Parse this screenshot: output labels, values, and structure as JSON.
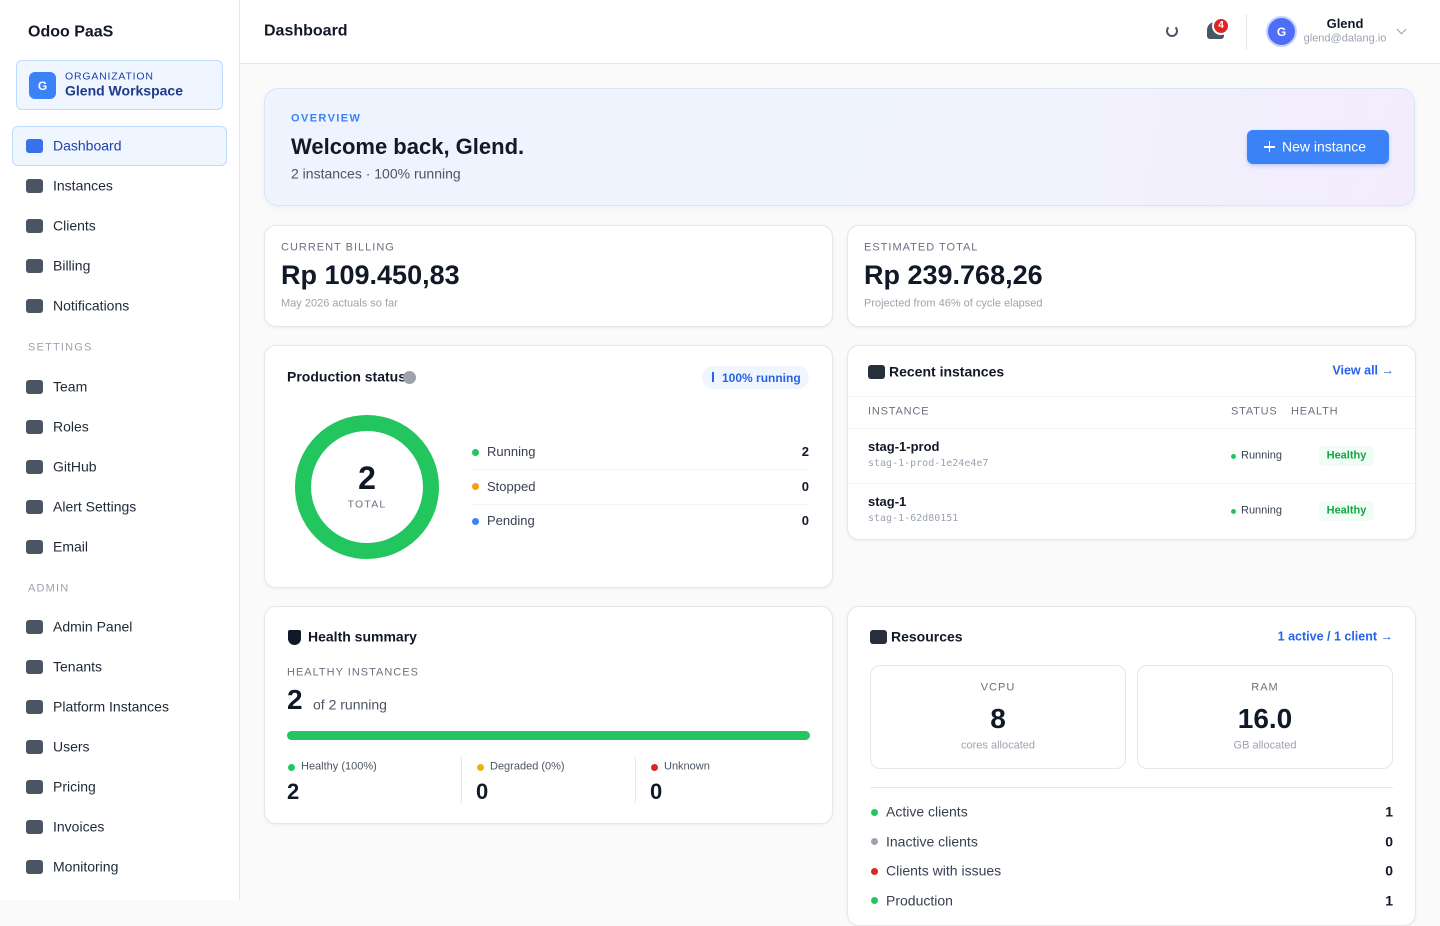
{
  "sidebar": {
    "brand": "Odoo PaaS",
    "organization": {
      "avatar": "G",
      "label": "ORGANIZATION",
      "name": "Glend Workspace"
    },
    "nav": [
      "Dashboard",
      "Instances",
      "Clients",
      "Billing",
      "Notifications"
    ],
    "settings": {
      "label": "SETTINGS",
      "items": [
        "Team",
        "Roles",
        "GitHub",
        "Alert Settings",
        "Email"
      ]
    },
    "admin": {
      "label": "ADMIN",
      "items": [
        "Admin Panel",
        "Tenants",
        "Platform Instances",
        "Users",
        "Pricing",
        "Invoices",
        "Monitoring"
      ]
    }
  },
  "header": {
    "title": "Dashboard",
    "notification_count": 4,
    "user": {
      "avatar": "G",
      "name": "Glend",
      "email": "glend@dalang.io"
    }
  },
  "overview": {
    "eyebrow": "OVERVIEW",
    "title": "Welcome back, Glend.",
    "subtitle": "2 instances · 100% running",
    "button": "New instance"
  },
  "billing": [
    {
      "label": "CURRENT BILLING",
      "value": "Rp 109.450,83",
      "note": "May 2026 actuals so far"
    },
    {
      "label": "ESTIMATED TOTAL",
      "value": "Rp 239.768,26",
      "note": "Projected from 46% of cycle elapsed"
    }
  ],
  "production_status": {
    "title": "Production status",
    "badge": "100% running",
    "total": 2,
    "total_label": "TOTAL",
    "rows": [
      {
        "label": "Running",
        "value": 2,
        "color": "#22c55e"
      },
      {
        "label": "Stopped",
        "value": 0,
        "color": "#f59e0b"
      },
      {
        "label": "Pending",
        "value": 0,
        "color": "#3b82f6"
      }
    ]
  },
  "recent_instances": {
    "title": "Recent instances",
    "link": "View all →",
    "columns": [
      "INSTANCE",
      "STATUS",
      "HEALTH"
    ],
    "rows": [
      {
        "name": "stag-1-prod",
        "id": "stag-1-prod-1e24e4e7",
        "status": "Running",
        "health": "Healthy"
      },
      {
        "name": "stag-1",
        "id": "stag-1-62d80151",
        "status": "Running",
        "health": "Healthy"
      }
    ]
  },
  "health_summary": {
    "title": "Health summary",
    "label": "HEALTHY INSTANCES",
    "value": 2,
    "detail": "of 2 running",
    "stats": [
      {
        "label": "Healthy (100%)",
        "value": 2,
        "color": "#22c55e"
      },
      {
        "label": "Degraded (0%)",
        "value": 0,
        "color": "#eab308"
      },
      {
        "label": "Unknown",
        "value": 0,
        "color": "#dc2626"
      }
    ]
  },
  "resources": {
    "title": "Resources",
    "link": "1 active / 1 client →",
    "cards": [
      {
        "label": "VCPU",
        "value": "8",
        "note": "cores allocated"
      },
      {
        "label": "RAM",
        "value": "16.0",
        "note": "GB allocated"
      }
    ],
    "items": [
      {
        "label": "Active clients",
        "value": 1,
        "color": "#22c55e"
      },
      {
        "label": "Inactive clients",
        "value": 0,
        "color": "#9ca3af"
      },
      {
        "label": "Clients with issues",
        "value": 0,
        "color": "#dc2626"
      },
      {
        "label": "Production",
        "value": 1,
        "color": "#22c55e"
      }
    ]
  }
}
